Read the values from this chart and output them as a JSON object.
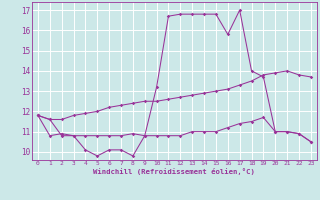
{
  "xlabel": "Windchill (Refroidissement éolien,°C)",
  "bg_color": "#cce8e8",
  "line_color": "#993399",
  "xlim": [
    -0.5,
    23.5
  ],
  "ylim": [
    9.6,
    17.4
  ],
  "yticks": [
    10,
    11,
    12,
    13,
    14,
    15,
    16,
    17
  ],
  "xticks": [
    0,
    1,
    2,
    3,
    4,
    5,
    6,
    7,
    8,
    9,
    10,
    11,
    12,
    13,
    14,
    15,
    16,
    17,
    18,
    19,
    20,
    21,
    22,
    23
  ],
  "series": [
    [
      11.8,
      11.6,
      10.8,
      10.8,
      10.1,
      9.8,
      10.1,
      10.1,
      9.8,
      10.8,
      13.2,
      16.7,
      16.8,
      16.8,
      16.8,
      16.8,
      15.8,
      17.0,
      14.0,
      13.7,
      11.0,
      11.0,
      10.9,
      10.5
    ],
    [
      11.8,
      10.8,
      10.9,
      10.8,
      10.8,
      10.8,
      10.8,
      10.8,
      10.9,
      10.8,
      10.8,
      10.8,
      10.8,
      11.0,
      11.0,
      11.0,
      11.2,
      11.4,
      11.5,
      11.7,
      11.0,
      11.0,
      10.9,
      10.5
    ],
    [
      11.8,
      11.6,
      11.6,
      11.8,
      11.9,
      12.0,
      12.2,
      12.3,
      12.4,
      12.5,
      12.5,
      12.6,
      12.7,
      12.8,
      12.9,
      13.0,
      13.1,
      13.3,
      13.5,
      13.8,
      13.9,
      14.0,
      13.8,
      13.7
    ]
  ]
}
